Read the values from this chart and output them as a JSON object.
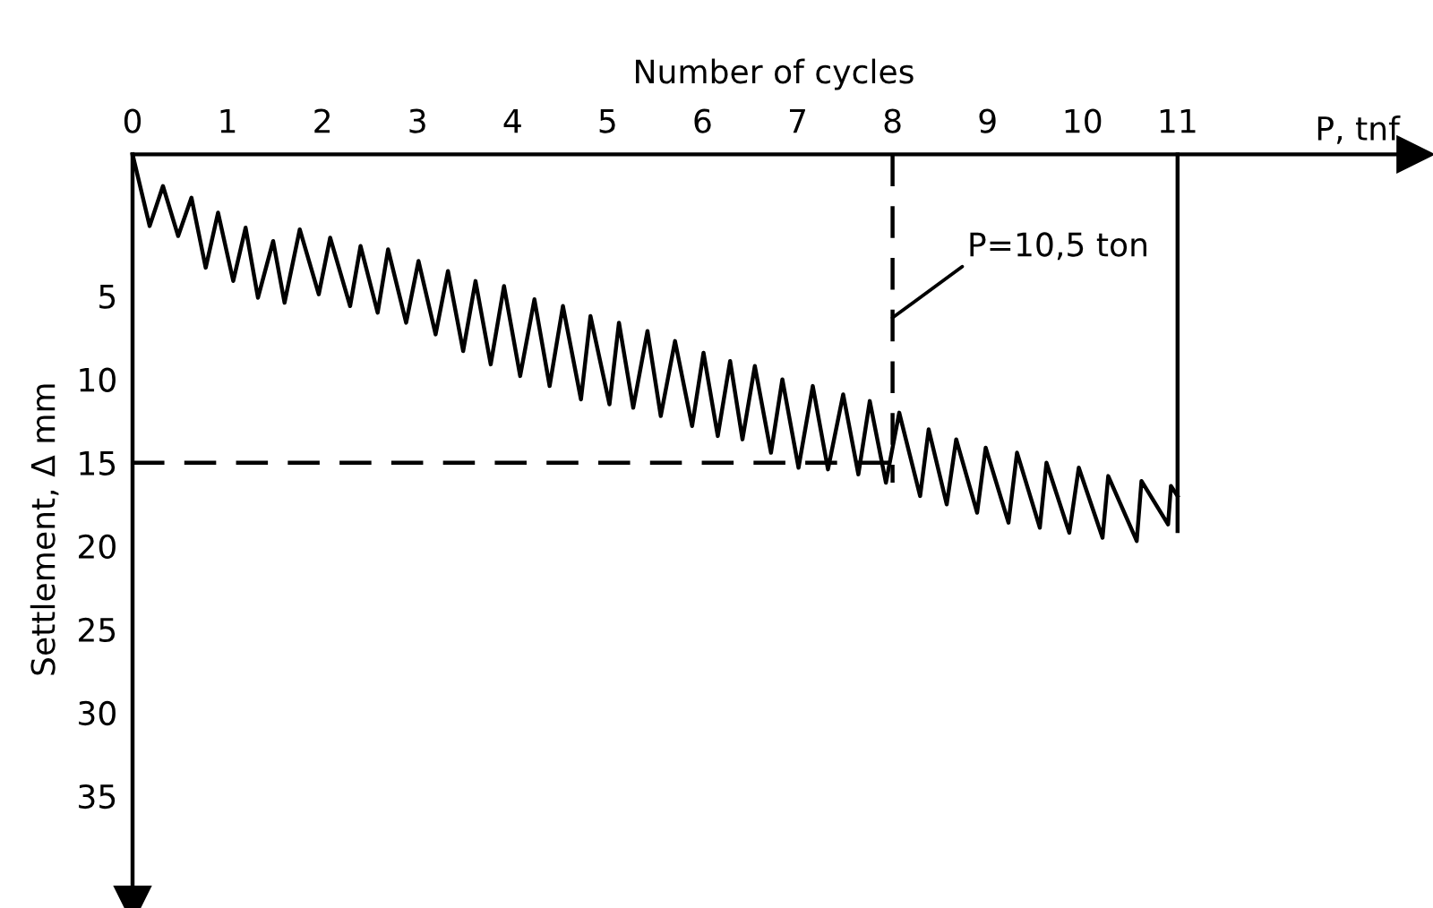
{
  "chart_data": {
    "type": "line",
    "xlabel": "Number of cycles",
    "ylabel": "Settlement, Δ mm",
    "xlim": [
      0,
      13.5
    ],
    "ylim": [
      41.5,
      -3.5
    ],
    "xticks": [
      0,
      1,
      2,
      3,
      4,
      5,
      6,
      7,
      8,
      9,
      10,
      11
    ],
    "yticks": [
      5,
      10,
      15,
      20,
      25,
      30,
      35
    ],
    "grid": false,
    "marker": "none",
    "series": [
      {
        "color": "#000000",
        "line_style": "solid",
        "x": [
          0,
          0.18,
          0.32,
          0.48,
          0.62,
          0.77,
          0.9,
          1.06,
          1.19,
          1.32,
          1.48,
          1.6,
          1.76,
          1.96,
          2.08,
          2.29,
          2.4,
          2.58,
          2.69,
          2.88,
          3.01,
          3.19,
          3.32,
          3.48,
          3.61,
          3.77,
          3.91,
          4.08,
          4.23,
          4.39,
          4.53,
          4.72,
          4.82,
          5.02,
          5.12,
          5.27,
          5.42,
          5.56,
          5.71,
          5.89,
          6.01,
          6.16,
          6.29,
          6.42,
          6.55,
          6.72,
          6.84,
          7.01,
          7.16,
          7.32,
          7.48,
          7.64,
          7.76,
          7.93,
          8.07,
          8.29,
          8.38,
          8.57,
          8.67,
          8.89,
          8.98,
          9.22,
          9.31,
          9.55,
          9.62,
          9.86,
          9.96,
          10.21,
          10.27,
          10.57,
          10.62,
          10.9,
          10.93,
          11.0
        ],
        "values": [
          -3.5,
          0.8,
          -1.6,
          1.4,
          -0.9,
          3.3,
          0.0,
          4.1,
          0.9,
          5.1,
          1.7,
          5.4,
          1.0,
          4.9,
          1.5,
          5.6,
          2.0,
          6.0,
          2.2,
          6.6,
          2.9,
          7.3,
          3.5,
          8.3,
          4.1,
          9.1,
          4.4,
          9.8,
          5.2,
          10.4,
          5.6,
          11.2,
          6.2,
          11.5,
          6.6,
          11.7,
          7.1,
          12.2,
          7.7,
          12.8,
          8.4,
          13.4,
          8.9,
          13.6,
          9.2,
          14.4,
          10.0,
          15.3,
          10.4,
          15.4,
          10.9,
          15.7,
          11.3,
          16.2,
          12.0,
          17.0,
          13.0,
          17.5,
          13.6,
          18.0,
          14.1,
          18.6,
          14.4,
          18.9,
          15.0,
          19.2,
          15.3,
          19.5,
          15.8,
          19.7,
          16.1,
          18.7,
          16.4,
          17.0
        ]
      },
      {
        "color": "#000000",
        "line_style": "dashed",
        "x": [
          8,
          8
        ],
        "values": [
          -3.5,
          16.2
        ]
      },
      {
        "color": "#000000",
        "line_style": "dashed",
        "x": [
          0,
          8
        ],
        "values": [
          15,
          15
        ]
      },
      {
        "color": "#000000",
        "line_style": "solid",
        "x": [
          11,
          11
        ],
        "values": [
          -3.5,
          19.1
        ]
      }
    ],
    "annotations": [
      {
        "text": "P=10,5 ton",
        "x": 8,
        "y": 6.3
      },
      "P, tnf"
    ]
  }
}
